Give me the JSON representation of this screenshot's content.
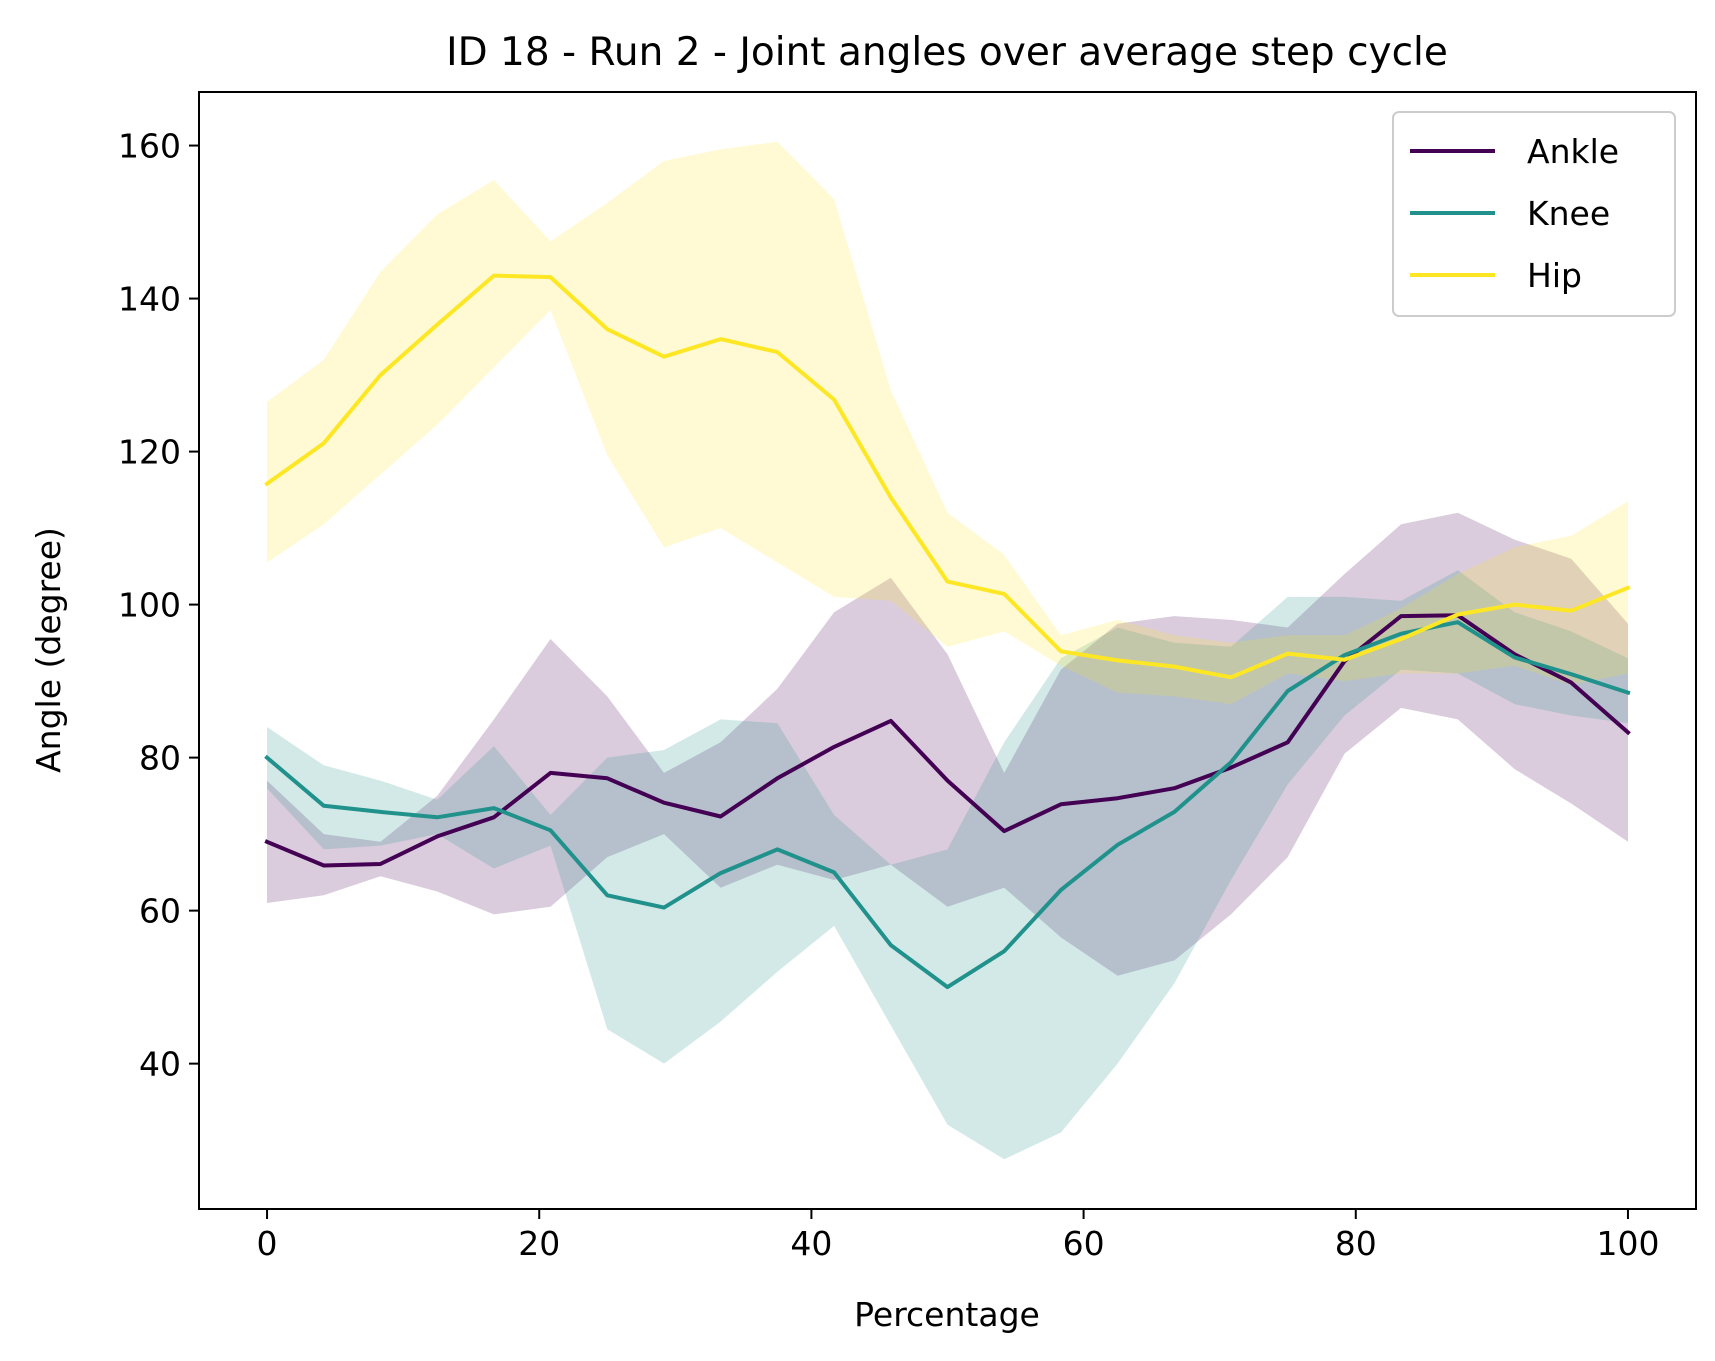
{
  "chart_data": {
    "type": "line",
    "title": "ID 18 - Run 2 - Joint angles over average step cycle",
    "xlabel": "Percentage",
    "ylabel": "Angle (degree)",
    "xlim": [
      -5,
      105
    ],
    "ylim": [
      21,
      167
    ],
    "xticks": [
      0,
      20,
      40,
      60,
      80,
      100
    ],
    "yticks": [
      40,
      60,
      80,
      100,
      120,
      140,
      160
    ],
    "grid": false,
    "legend_position": "top-right",
    "x": [
      0,
      4.17,
      8.33,
      12.5,
      16.67,
      20.83,
      25,
      29.17,
      33.33,
      37.5,
      41.67,
      45.83,
      50,
      54.17,
      58.33,
      62.5,
      66.67,
      70.83,
      75,
      79.17,
      83.33,
      87.5,
      91.67,
      95.83,
      100
    ],
    "series": [
      {
        "name": "Ankle",
        "color": "#440154",
        "values": [
          69.0,
          65.9,
          66.1,
          69.7,
          72.2,
          78.0,
          77.3,
          74.1,
          72.3,
          77.3,
          81.4,
          84.8,
          77.0,
          70.4,
          73.9,
          74.7,
          76.0,
          78.7,
          82.0,
          92.6,
          98.5,
          98.6,
          93.5,
          89.8,
          83.3
        ],
        "band_upper": [
          77.0,
          70.0,
          69.0,
          75.0,
          85.0,
          95.5,
          88.0,
          78.0,
          82.0,
          89.0,
          99.0,
          103.5,
          93.5,
          78.0,
          91.5,
          97.5,
          98.5,
          98.0,
          97.0,
          104.0,
          110.5,
          112.0,
          108.5,
          106.0,
          97.5
        ],
        "band_lower": [
          61.0,
          62.0,
          64.5,
          62.5,
          59.5,
          60.5,
          67.0,
          70.0,
          63.0,
          66.0,
          64.0,
          66.0,
          60.5,
          63.0,
          56.5,
          51.5,
          53.5,
          59.5,
          67.0,
          80.5,
          86.5,
          85.0,
          78.5,
          74.0,
          69.0
        ]
      },
      {
        "name": "Knee",
        "color": "#21918c",
        "values": [
          80.0,
          73.7,
          72.9,
          72.2,
          73.4,
          70.5,
          62.0,
          60.4,
          64.9,
          68.0,
          65.0,
          55.5,
          50.0,
          54.7,
          62.7,
          68.6,
          72.9,
          79.4,
          88.7,
          93.4,
          96.2,
          97.7,
          93.1,
          90.9,
          88.5
        ],
        "band_upper": [
          84.0,
          79.0,
          77.0,
          74.5,
          81.5,
          72.5,
          80.0,
          81.0,
          85.0,
          84.5,
          72.5,
          66.0,
          68.0,
          82.0,
          93.0,
          97.0,
          95.0,
          94.5,
          101.0,
          101.0,
          100.5,
          104.5,
          99.0,
          96.5,
          93.0
        ],
        "band_lower": [
          76.0,
          68.0,
          68.5,
          70.0,
          65.5,
          68.5,
          44.5,
          40.0,
          45.5,
          52.0,
          58.0,
          45.0,
          32.0,
          27.5,
          31.0,
          40.0,
          50.5,
          64.0,
          76.5,
          85.5,
          91.5,
          91.0,
          87.0,
          85.5,
          84.5
        ]
      },
      {
        "name": "Hip",
        "color": "#fde725",
        "values": [
          115.8,
          121.1,
          130.0,
          136.6,
          143.0,
          142.8,
          136.0,
          132.4,
          134.7,
          133.0,
          126.8,
          114.0,
          103.0,
          101.4,
          93.9,
          92.7,
          91.9,
          90.5,
          93.6,
          92.8,
          95.5,
          98.7,
          100.0,
          99.2,
          102.2
        ],
        "band_upper": [
          126.5,
          132.0,
          143.5,
          151.0,
          155.5,
          147.5,
          152.5,
          158.0,
          159.5,
          160.5,
          153.0,
          128.0,
          112.0,
          106.5,
          96.0,
          98.0,
          96.0,
          95.0,
          96.0,
          96.0,
          99.5,
          104.0,
          107.5,
          109.0,
          113.5
        ],
        "band_lower": [
          105.5,
          110.5,
          117.0,
          123.5,
          131.0,
          138.5,
          119.5,
          107.5,
          110.0,
          105.5,
          101.0,
          100.5,
          94.5,
          96.5,
          92.0,
          88.5,
          88.0,
          87.0,
          91.0,
          90.0,
          91.0,
          91.0,
          92.0,
          89.5,
          91.0
        ]
      }
    ]
  }
}
